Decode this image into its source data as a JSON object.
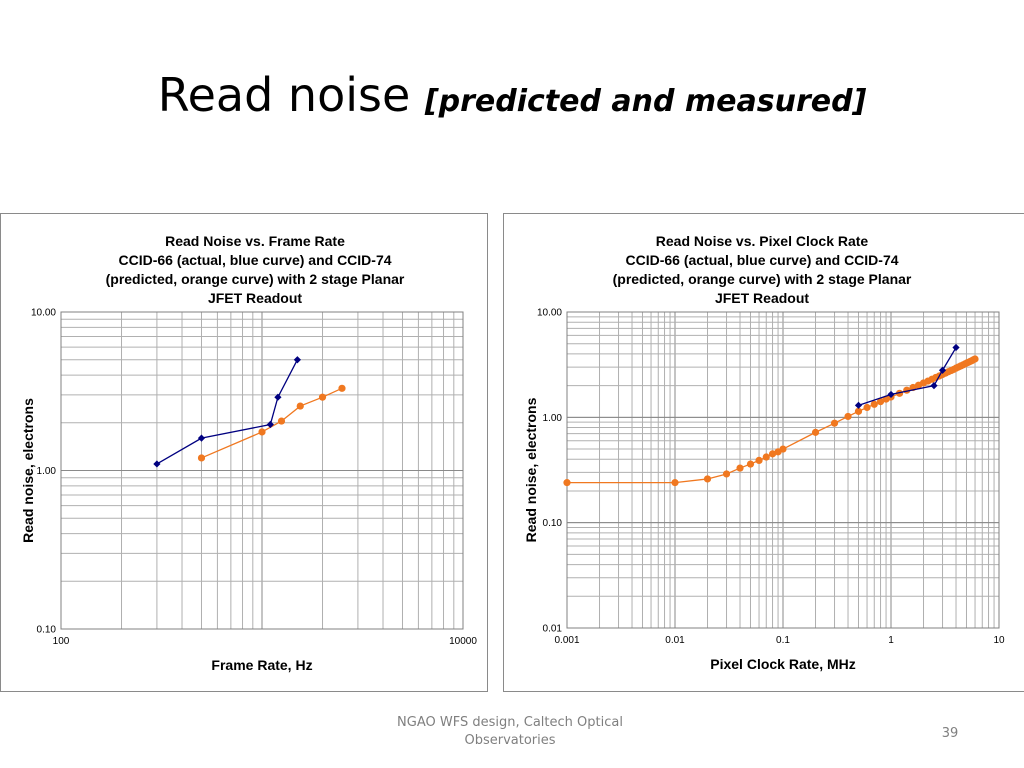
{
  "slide": {
    "title_main": "Read noise",
    "title_sub": "[predicted and measured]",
    "footer": "NGAO WFS design, Caltech Optical Observatories",
    "page_number": "39"
  },
  "colors": {
    "measured": "#000080",
    "predicted": "#f07820"
  },
  "chart_data": [
    {
      "type": "line",
      "title": [
        "Read Noise vs. Frame Rate",
        "CCID-66 (actual, blue curve) and CCID-74",
        "(predicted, orange curve) with 2 stage Planar",
        "JFET Readout"
      ],
      "xlabel": "Frame Rate, Hz",
      "ylabel": "Read noise, electrons",
      "xscale": "log",
      "yscale": "log",
      "xlim": [
        100,
        10000
      ],
      "ylim": [
        0.1,
        10
      ],
      "xticks": [
        "100",
        "10000"
      ],
      "yticks": [
        "0.10",
        "1.00",
        "10.00"
      ],
      "grid": true,
      "series": [
        {
          "color": "measured",
          "marker": "diamond",
          "x": [
            300,
            500,
            1100,
            1200,
            1500
          ],
          "y": [
            1.1,
            1.6,
            1.95,
            2.9,
            5.0
          ]
        },
        {
          "color": "predicted",
          "marker": "circle",
          "x": [
            500,
            1000,
            1250,
            1550,
            2000,
            2500
          ],
          "y": [
            1.2,
            1.75,
            2.05,
            2.55,
            2.9,
            3.3
          ]
        }
      ]
    },
    {
      "type": "line",
      "title": [
        "Read Noise vs. Pixel Clock Rate",
        "CCID-66 (actual, blue curve) and CCID-74",
        "(predicted, orange curve) with 2 stage Planar",
        "JFET Readout"
      ],
      "xlabel": "Pixel Clock Rate, MHz",
      "ylabel": "Read noise, electrons",
      "xscale": "log",
      "yscale": "log",
      "xlim": [
        0.001,
        10
      ],
      "ylim": [
        0.01,
        10
      ],
      "xticks": [
        "0.001",
        "0.01",
        "0.1",
        "1",
        "10"
      ],
      "yticks": [
        "0.01",
        "0.10",
        "1.00",
        "10.00"
      ],
      "grid": true,
      "series": [
        {
          "color": "measured",
          "marker": "diamond",
          "x": [
            0.5,
            1.0,
            2.5,
            3.0,
            4.0
          ],
          "y": [
            1.3,
            1.65,
            2.0,
            2.8,
            4.6
          ]
        },
        {
          "color": "predicted",
          "marker": "circle",
          "x": [
            0.001,
            0.01,
            0.02,
            0.03,
            0.04,
            0.05,
            0.06,
            0.07,
            0.08,
            0.09,
            0.1,
            0.2,
            0.3,
            0.4,
            0.5,
            0.6,
            0.7,
            0.8,
            0.9,
            1.0,
            1.2,
            1.4,
            1.6,
            1.8,
            2.0,
            2.2,
            2.4,
            2.6,
            2.8,
            3.0,
            3.2,
            3.4,
            3.6,
            3.8,
            4.0,
            4.2,
            4.4,
            4.6,
            4.8,
            5.0,
            5.2,
            5.4,
            5.6,
            5.8,
            6.0
          ],
          "y": [
            0.24,
            0.24,
            0.26,
            0.29,
            0.33,
            0.36,
            0.39,
            0.42,
            0.45,
            0.47,
            0.5,
            0.72,
            0.88,
            1.02,
            1.14,
            1.24,
            1.33,
            1.41,
            1.49,
            1.56,
            1.69,
            1.81,
            1.92,
            2.02,
            2.12,
            2.21,
            2.3,
            2.39,
            2.47,
            2.55,
            2.63,
            2.71,
            2.78,
            2.85,
            2.93,
            3.0,
            3.07,
            3.13,
            3.2,
            3.27,
            3.33,
            3.39,
            3.45,
            3.52,
            3.58
          ]
        }
      ]
    }
  ]
}
